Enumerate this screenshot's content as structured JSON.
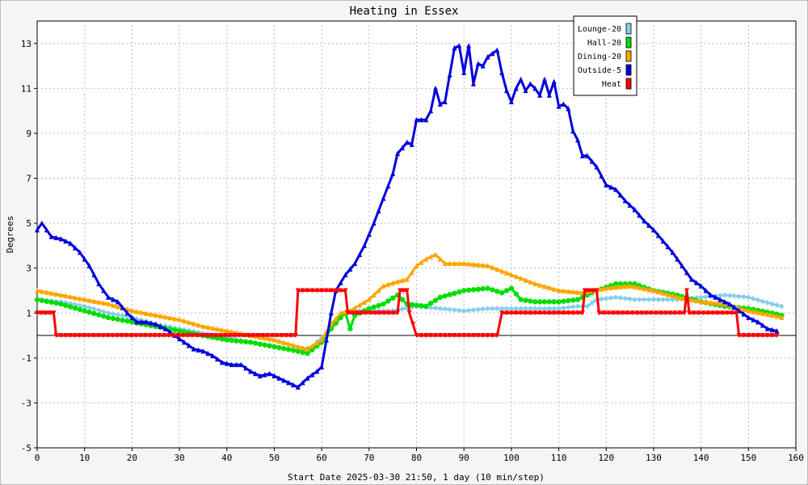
{
  "chart_data": {
    "type": "line",
    "title": "Heating in Essex",
    "xlabel": "Start Date 2025-03-30 21:50, 1 day (10 min/step)",
    "ylabel": "Degrees",
    "xlim": [
      0,
      160
    ],
    "ylim": [
      -5,
      14
    ],
    "xticks": [
      0,
      10,
      20,
      30,
      40,
      50,
      60,
      70,
      80,
      90,
      100,
      110,
      120,
      130,
      140,
      150,
      160
    ],
    "yticks": [
      -5,
      -3,
      -1,
      1,
      3,
      5,
      7,
      9,
      11,
      13
    ],
    "grid": true,
    "legend_position": "top-right",
    "series": [
      {
        "name": "Lounge-20",
        "color": "#87ceeb",
        "marker": "diamond",
        "points": [
          [
            0,
            1.6
          ],
          [
            5,
            1.5
          ],
          [
            10,
            1.3
          ],
          [
            15,
            1.0
          ],
          [
            20,
            0.8
          ],
          [
            25,
            0.5
          ],
          [
            30,
            0.3
          ],
          [
            35,
            0.1
          ],
          [
            40,
            -0.1
          ],
          [
            45,
            -0.3
          ],
          [
            50,
            -0.5
          ],
          [
            55,
            -0.7
          ],
          [
            58,
            -0.5
          ],
          [
            61,
            0.1
          ],
          [
            64,
            0.9
          ],
          [
            66,
            1.1
          ],
          [
            70,
            1.1
          ],
          [
            75,
            1.1
          ],
          [
            80,
            1.3
          ],
          [
            85,
            1.2
          ],
          [
            90,
            1.1
          ],
          [
            95,
            1.2
          ],
          [
            100,
            1.2
          ],
          [
            105,
            1.2
          ],
          [
            110,
            1.2
          ],
          [
            114,
            1.3
          ],
          [
            116,
            1.3
          ],
          [
            118,
            1.6
          ],
          [
            122,
            1.7
          ],
          [
            126,
            1.6
          ],
          [
            130,
            1.6
          ],
          [
            135,
            1.6
          ],
          [
            140,
            1.7
          ],
          [
            145,
            1.8
          ],
          [
            150,
            1.7
          ],
          [
            155,
            1.4
          ],
          [
            157,
            1.3
          ]
        ]
      },
      {
        "name": "Hall-20",
        "color": "#00dd00",
        "marker": "circle",
        "points": [
          [
            0,
            1.6
          ],
          [
            5,
            1.4
          ],
          [
            10,
            1.1
          ],
          [
            15,
            0.8
          ],
          [
            20,
            0.6
          ],
          [
            25,
            0.4
          ],
          [
            30,
            0.2
          ],
          [
            35,
            0.0
          ],
          [
            40,
            -0.2
          ],
          [
            45,
            -0.3
          ],
          [
            50,
            -0.5
          ],
          [
            55,
            -0.7
          ],
          [
            57,
            -0.8
          ],
          [
            60,
            -0.3
          ],
          [
            62,
            0.3
          ],
          [
            64,
            0.8
          ],
          [
            65,
            1.0
          ],
          [
            66,
            0.3
          ],
          [
            67,
            0.9
          ],
          [
            70,
            1.2
          ],
          [
            73,
            1.4
          ],
          [
            76,
            1.8
          ],
          [
            78,
            1.4
          ],
          [
            82,
            1.3
          ],
          [
            85,
            1.7
          ],
          [
            90,
            2.0
          ],
          [
            95,
            2.1
          ],
          [
            98,
            1.9
          ],
          [
            100,
            2.1
          ],
          [
            102,
            1.6
          ],
          [
            105,
            1.5
          ],
          [
            110,
            1.5
          ],
          [
            114,
            1.6
          ],
          [
            118,
            2.0
          ],
          [
            122,
            2.3
          ],
          [
            126,
            2.3
          ],
          [
            130,
            2.0
          ],
          [
            135,
            1.8
          ],
          [
            140,
            1.5
          ],
          [
            145,
            1.3
          ],
          [
            150,
            1.2
          ],
          [
            155,
            1.0
          ],
          [
            157,
            0.9
          ]
        ]
      },
      {
        "name": "Dining-20",
        "color": "#ffa500",
        "marker": "triangle",
        "points": [
          [
            0,
            2.0
          ],
          [
            5,
            1.8
          ],
          [
            10,
            1.6
          ],
          [
            15,
            1.4
          ],
          [
            20,
            1.1
          ],
          [
            25,
            0.9
          ],
          [
            30,
            0.7
          ],
          [
            35,
            0.4
          ],
          [
            40,
            0.2
          ],
          [
            45,
            0.0
          ],
          [
            50,
            -0.2
          ],
          [
            55,
            -0.5
          ],
          [
            57,
            -0.6
          ],
          [
            60,
            -0.2
          ],
          [
            62,
            0.5
          ],
          [
            64,
            1.0
          ],
          [
            66,
            1.1
          ],
          [
            70,
            1.6
          ],
          [
            73,
            2.2
          ],
          [
            76,
            2.4
          ],
          [
            78,
            2.5
          ],
          [
            80,
            3.1
          ],
          [
            82,
            3.4
          ],
          [
            84,
            3.6
          ],
          [
            86,
            3.2
          ],
          [
            90,
            3.2
          ],
          [
            95,
            3.1
          ],
          [
            100,
            2.7
          ],
          [
            105,
            2.3
          ],
          [
            110,
            2.0
          ],
          [
            115,
            1.9
          ],
          [
            120,
            2.1
          ],
          [
            125,
            2.2
          ],
          [
            130,
            2.0
          ],
          [
            135,
            1.7
          ],
          [
            140,
            1.5
          ],
          [
            145,
            1.4
          ],
          [
            150,
            1.1
          ],
          [
            155,
            0.9
          ],
          [
            157,
            0.8
          ]
        ]
      },
      {
        "name": "Outside-5",
        "color": "#0000dd",
        "marker": "triangle",
        "points": [
          [
            0,
            4.7
          ],
          [
            1,
            5.0
          ],
          [
            3,
            4.4
          ],
          [
            5,
            4.3
          ],
          [
            7,
            4.1
          ],
          [
            9,
            3.7
          ],
          [
            11,
            3.1
          ],
          [
            13,
            2.3
          ],
          [
            15,
            1.7
          ],
          [
            17,
            1.5
          ],
          [
            19,
            1.0
          ],
          [
            21,
            0.6
          ],
          [
            23,
            0.6
          ],
          [
            25,
            0.5
          ],
          [
            27,
            0.3
          ],
          [
            29,
            0.0
          ],
          [
            31,
            -0.3
          ],
          [
            33,
            -0.6
          ],
          [
            35,
            -0.7
          ],
          [
            37,
            -0.9
          ],
          [
            39,
            -1.2
          ],
          [
            41,
            -1.3
          ],
          [
            43,
            -1.3
          ],
          [
            45,
            -1.6
          ],
          [
            47,
            -1.8
          ],
          [
            49,
            -1.7
          ],
          [
            51,
            -1.9
          ],
          [
            53,
            -2.1
          ],
          [
            55,
            -2.3
          ],
          [
            57,
            -1.9
          ],
          [
            59,
            -1.6
          ],
          [
            60,
            -1.4
          ],
          [
            61,
            -0.2
          ],
          [
            62,
            1.0
          ],
          [
            63,
            2.0
          ],
          [
            65,
            2.7
          ],
          [
            67,
            3.2
          ],
          [
            69,
            4.0
          ],
          [
            71,
            5.0
          ],
          [
            73,
            6.1
          ],
          [
            75,
            7.2
          ],
          [
            76,
            8.1
          ],
          [
            78,
            8.6
          ],
          [
            79,
            8.5
          ],
          [
            80,
            9.6
          ],
          [
            82,
            9.6
          ],
          [
            83,
            10.0
          ],
          [
            84,
            11.0
          ],
          [
            85,
            10.3
          ],
          [
            86,
            10.4
          ],
          [
            88,
            12.8
          ],
          [
            89,
            12.9
          ],
          [
            90,
            11.7
          ],
          [
            91,
            12.9
          ],
          [
            92,
            11.2
          ],
          [
            93,
            12.1
          ],
          [
            94,
            12.0
          ],
          [
            95,
            12.4
          ],
          [
            97,
            12.7
          ],
          [
            98,
            11.7
          ],
          [
            99,
            10.9
          ],
          [
            100,
            10.4
          ],
          [
            101,
            11.0
          ],
          [
            102,
            11.4
          ],
          [
            103,
            10.9
          ],
          [
            104,
            11.2
          ],
          [
            105,
            11.0
          ],
          [
            106,
            10.7
          ],
          [
            107,
            11.4
          ],
          [
            108,
            10.7
          ],
          [
            109,
            11.3
          ],
          [
            110,
            10.2
          ],
          [
            111,
            10.3
          ],
          [
            112,
            10.1
          ],
          [
            113,
            9.1
          ],
          [
            114,
            8.7
          ],
          [
            115,
            8.0
          ],
          [
            116,
            8.0
          ],
          [
            118,
            7.5
          ],
          [
            120,
            6.7
          ],
          [
            122,
            6.5
          ],
          [
            124,
            6.0
          ],
          [
            126,
            5.6
          ],
          [
            128,
            5.1
          ],
          [
            130,
            4.7
          ],
          [
            132,
            4.2
          ],
          [
            134,
            3.7
          ],
          [
            136,
            3.1
          ],
          [
            138,
            2.5
          ],
          [
            140,
            2.2
          ],
          [
            142,
            1.8
          ],
          [
            144,
            1.6
          ],
          [
            146,
            1.4
          ],
          [
            148,
            1.1
          ],
          [
            150,
            0.8
          ],
          [
            152,
            0.6
          ],
          [
            154,
            0.3
          ],
          [
            156,
            0.2
          ]
        ]
      },
      {
        "name": "Heat",
        "color": "#ff0000",
        "marker": "triangle-down",
        "points": [
          [
            0,
            1
          ],
          [
            3.5,
            1
          ],
          [
            4,
            0
          ],
          [
            54.5,
            0
          ],
          [
            55,
            2
          ],
          [
            65,
            2
          ],
          [
            65.5,
            1
          ],
          [
            76,
            1
          ],
          [
            76.5,
            2
          ],
          [
            78,
            2
          ],
          [
            78.5,
            1
          ],
          [
            80,
            0
          ],
          [
            97,
            0
          ],
          [
            98,
            1
          ],
          [
            115,
            1
          ],
          [
            115.5,
            2
          ],
          [
            118,
            2
          ],
          [
            118.5,
            1
          ],
          [
            136.5,
            1
          ],
          [
            137,
            2
          ],
          [
            137.5,
            1
          ],
          [
            147.5,
            1
          ],
          [
            148,
            0
          ],
          [
            156,
            0
          ]
        ]
      }
    ]
  }
}
